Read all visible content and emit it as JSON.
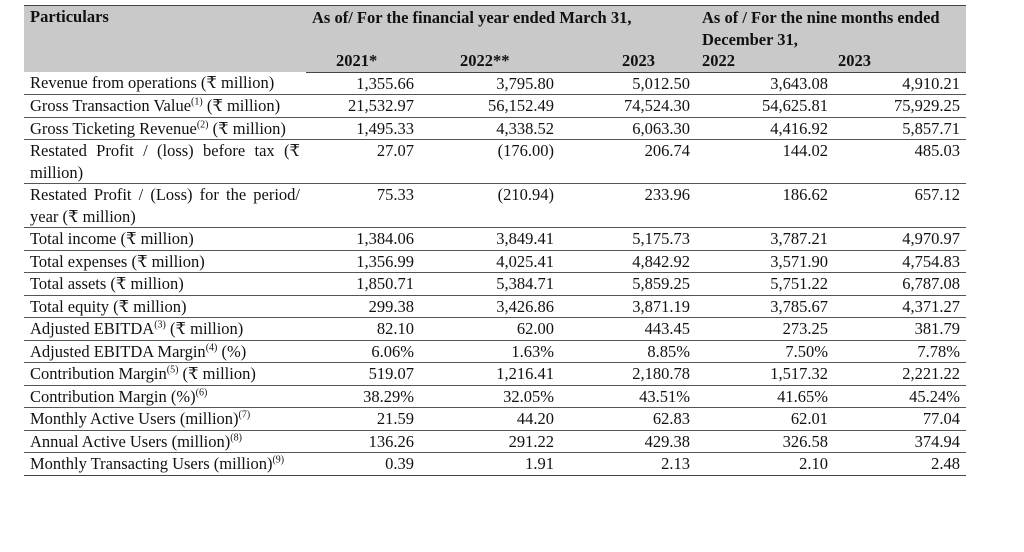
{
  "header": {
    "particulars": "Particulars",
    "fy_group": "As of/ For the financial year ended March 31,",
    "nine_month_group": "As of / For the nine months ended December 31,",
    "years": [
      "2021*",
      "2022**",
      "2023",
      "2022",
      "2023"
    ]
  },
  "rows": [
    {
      "label": "Revenue from operations (₹ million)",
      "sup": "",
      "label_suffix": "",
      "values": [
        "1,355.66",
        "3,795.80",
        "5,012.50",
        "3,643.08",
        "4,910.21"
      ]
    },
    {
      "label": "Gross Transaction Value",
      "sup": "(1)",
      "label_suffix": " (₹ million)",
      "values": [
        "21,532.97",
        "56,152.49",
        "74,524.30",
        "54,625.81",
        "75,929.25"
      ]
    },
    {
      "label": "Gross Ticketing Revenue",
      "sup": "(2)",
      "label_suffix": " (₹ million)",
      "values": [
        "1,495.33",
        "4,338.52",
        "6,063.30",
        "4,416.92",
        "5,857.71"
      ]
    },
    {
      "label": "Restated Profit / (loss) before tax (₹ million)",
      "sup": "",
      "label_suffix": "",
      "values": [
        "27.07",
        "(176.00)",
        "206.74",
        "144.02",
        "485.03"
      ]
    },
    {
      "label": "Restated Profit / (Loss) for the period/ year (₹ million)",
      "sup": "",
      "label_suffix": "",
      "values": [
        "75.33",
        "(210.94)",
        "233.96",
        "186.62",
        "657.12"
      ]
    },
    {
      "label": "Total income (₹ million)",
      "sup": "",
      "label_suffix": "",
      "values": [
        "1,384.06",
        "3,849.41",
        "5,175.73",
        "3,787.21",
        "4,970.97"
      ]
    },
    {
      "label": "Total expenses (₹ million)",
      "sup": "",
      "label_suffix": "",
      "values": [
        "1,356.99",
        "4,025.41",
        "4,842.92",
        "3,571.90",
        "4,754.83"
      ]
    },
    {
      "label": "Total assets (₹ million)",
      "sup": "",
      "label_suffix": "",
      "values": [
        "1,850.71",
        "5,384.71",
        "5,859.25",
        "5,751.22",
        "6,787.08"
      ]
    },
    {
      "label": "Total equity (₹ million)",
      "sup": "",
      "label_suffix": "",
      "values": [
        "299.38",
        "3,426.86",
        "3,871.19",
        "3,785.67",
        "4,371.27"
      ]
    },
    {
      "label": "Adjusted EBITDA",
      "sup": "(3)",
      "label_suffix": " (₹ million)",
      "values": [
        "82.10",
        "62.00",
        "443.45",
        "273.25",
        "381.79"
      ]
    },
    {
      "label": "Adjusted EBITDA Margin",
      "sup": "(4)",
      "label_suffix": " (%)",
      "values": [
        "6.06%",
        "1.63%",
        "8.85%",
        "7.50%",
        "7.78%"
      ]
    },
    {
      "label": "Contribution Margin",
      "sup": "(5)",
      "label_suffix": " (₹ million)",
      "values": [
        "519.07",
        "1,216.41",
        "2,180.78",
        "1,517.32",
        "2,221.22"
      ]
    },
    {
      "label": "Contribution Margin (%)",
      "sup": "(6)",
      "label_suffix": "",
      "values": [
        "38.29%",
        "32.05%",
        "43.51%",
        "41.65%",
        "45.24%"
      ]
    },
    {
      "label": "Monthly Active Users (million)",
      "sup": "(7)",
      "label_suffix": "",
      "values": [
        "21.59",
        "44.20",
        "62.83",
        "62.01",
        "77.04"
      ]
    },
    {
      "label": "Annual Active Users (million)",
      "sup": "(8)",
      "label_suffix": "",
      "values": [
        "136.26",
        "291.22",
        "429.38",
        "326.58",
        "374.94"
      ]
    },
    {
      "label": "Monthly Transacting Users (million)",
      "sup": "(9)",
      "label_suffix": "",
      "values": [
        "0.39",
        "1.91",
        "2.13",
        "2.10",
        "2.48"
      ]
    }
  ]
}
